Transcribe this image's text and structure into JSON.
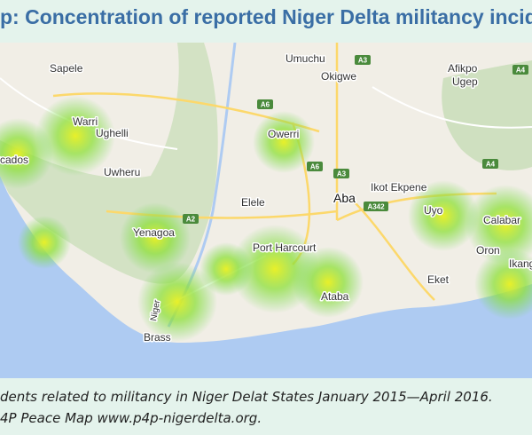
{
  "header": {
    "title": "p: Concentration of reported Niger Delta militancy incid"
  },
  "map": {
    "places": [
      "Sapele",
      "Umuchu",
      "Afikpo",
      "Okigwe",
      "Ugep",
      "Warri",
      "Ughelli",
      "Owerri",
      "rcados",
      "Uwheru",
      "Ikot Ekpene",
      "Aba",
      "Elele",
      "Uyo",
      "Calabar",
      "Yenagoa",
      "Port Harcourt",
      "Oron",
      "Ikang",
      "Eket",
      "Ataba",
      "Niger",
      "Brass"
    ],
    "roads": [
      "A3",
      "A4",
      "A6",
      "A6",
      "A3",
      "A4",
      "A2",
      "A342"
    ]
  },
  "caption": {
    "lines": [
      "dents related to militancy in Niger Delat States January 2015—April 2016.",
      "4P Peace Map www.p4p-nigerdelta.org."
    ]
  }
}
